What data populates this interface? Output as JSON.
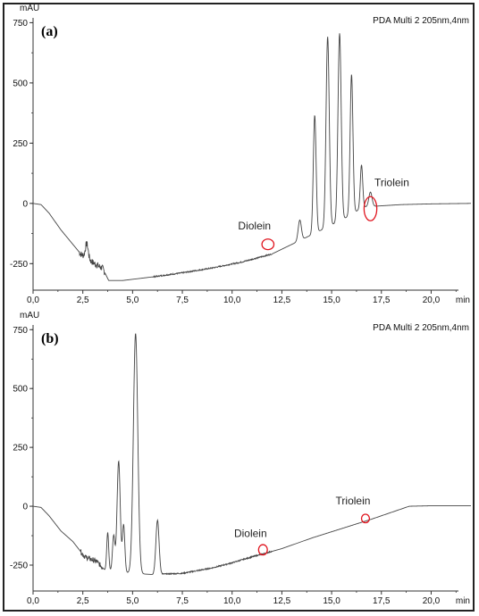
{
  "chart_data": [
    {
      "type": "line",
      "panel_label": "(a)",
      "unit_label": "mAU",
      "method_label": "PDA Multi 2 205nm,4nm",
      "x_unit": "min",
      "xlim": [
        0,
        22
      ],
      "ylim": [
        -360,
        770
      ],
      "x_ticks": [
        "0,0",
        "2,5",
        "5,0",
        "7,5",
        "10,0",
        "12,5",
        "15,0",
        "17,5",
        "20,0"
      ],
      "y_ticks": [
        "750",
        "500",
        "250",
        "0",
        "-250"
      ],
      "x_tick_values": [
        0,
        2.5,
        5,
        7.5,
        10,
        12.5,
        15,
        17.5,
        20
      ],
      "y_tick_values": [
        750,
        500,
        250,
        0,
        -250
      ],
      "baseline": [
        [
          0,
          0
        ],
        [
          0.4,
          -5
        ],
        [
          0.8,
          -40
        ],
        [
          1.4,
          -110
        ],
        [
          2.0,
          -170
        ],
        [
          2.4,
          -210
        ],
        [
          3.0,
          -245
        ],
        [
          3.5,
          -270
        ],
        [
          3.8,
          -320
        ],
        [
          4.5,
          -320
        ],
        [
          6.0,
          -305
        ],
        [
          7.5,
          -288
        ],
        [
          9.0,
          -268
        ],
        [
          10.5,
          -243
        ],
        [
          12.0,
          -210
        ],
        [
          13.0,
          -170
        ],
        [
          14.0,
          -130
        ],
        [
          15.5,
          -70
        ],
        [
          16.6,
          -15
        ],
        [
          17.5,
          -10
        ],
        [
          18.5,
          -5
        ],
        [
          20.0,
          -2
        ],
        [
          22.0,
          0
        ]
      ],
      "noise": [
        [
          2.3,
          3.6,
          28
        ]
      ],
      "peaks": [
        [
          2.7,
          60,
          0.07
        ],
        [
          13.4,
          85,
          0.08
        ],
        [
          14.15,
          490,
          0.07
        ],
        [
          14.8,
          790,
          0.08
        ],
        [
          15.4,
          780,
          0.08
        ],
        [
          16.0,
          580,
          0.07
        ],
        [
          16.5,
          180,
          0.06
        ],
        [
          16.95,
          60,
          0.08
        ]
      ],
      "annotations": [
        {
          "label": "Diolein",
          "x": 11.8,
          "y": -170,
          "rx": 0.3,
          "ry": 22,
          "text_x": 10.3,
          "text_y": -108
        },
        {
          "label": "Triolein",
          "x": 16.95,
          "y": -22,
          "rx": 0.32,
          "ry": 50,
          "text_x": 17.15,
          "text_y": 72
        }
      ]
    },
    {
      "type": "line",
      "panel_label": "(b)",
      "unit_label": "mAU",
      "method_label": "PDA Multi 2 205nm,4nm",
      "x_unit": "min",
      "xlim": [
        0,
        22
      ],
      "ylim": [
        -360,
        770
      ],
      "x_ticks": [
        "0,0",
        "2,5",
        "5,0",
        "7,5",
        "10,0",
        "12,5",
        "15,0",
        "17,5",
        "20,0"
      ],
      "y_ticks": [
        "750",
        "500",
        "250",
        "0",
        "-250"
      ],
      "x_tick_values": [
        0,
        2.5,
        5,
        7.5,
        10,
        12.5,
        15,
        17.5,
        20
      ],
      "y_tick_values": [
        750,
        500,
        250,
        0,
        -250
      ],
      "baseline": [
        [
          0,
          0
        ],
        [
          0.4,
          -5
        ],
        [
          0.8,
          -40
        ],
        [
          1.4,
          -105
        ],
        [
          2.0,
          -150
        ],
        [
          2.6,
          -215
        ],
        [
          3.2,
          -235
        ],
        [
          3.6,
          -270
        ],
        [
          4.0,
          -275
        ],
        [
          4.5,
          -280
        ],
        [
          5.0,
          -285
        ],
        [
          6.0,
          -290
        ],
        [
          7.5,
          -285
        ],
        [
          9.0,
          -262
        ],
        [
          10.0,
          -240
        ],
        [
          11.0,
          -215
        ],
        [
          12.5,
          -180
        ],
        [
          14.0,
          -135
        ],
        [
          15.5,
          -95
        ],
        [
          17.0,
          -55
        ],
        [
          18.9,
          0
        ],
        [
          20.0,
          2
        ],
        [
          22.0,
          2
        ]
      ],
      "noise": [
        [
          2.4,
          3.5,
          22
        ]
      ],
      "peaks": [
        [
          3.75,
          160,
          0.05
        ],
        [
          4.05,
          150,
          0.06
        ],
        [
          4.3,
          470,
          0.08
        ],
        [
          4.55,
          200,
          0.06
        ],
        [
          5.15,
          1020,
          0.11
        ],
        [
          6.25,
          230,
          0.08
        ]
      ],
      "annotations": [
        {
          "label": "Diolein",
          "x": 11.55,
          "y": -185,
          "rx": 0.22,
          "ry": 22,
          "text_x": 10.1,
          "text_y": -130
        },
        {
          "label": "Triolein",
          "x": 16.7,
          "y": -52,
          "rx": 0.2,
          "ry": 18,
          "text_x": 15.2,
          "text_y": 7
        }
      ]
    }
  ]
}
